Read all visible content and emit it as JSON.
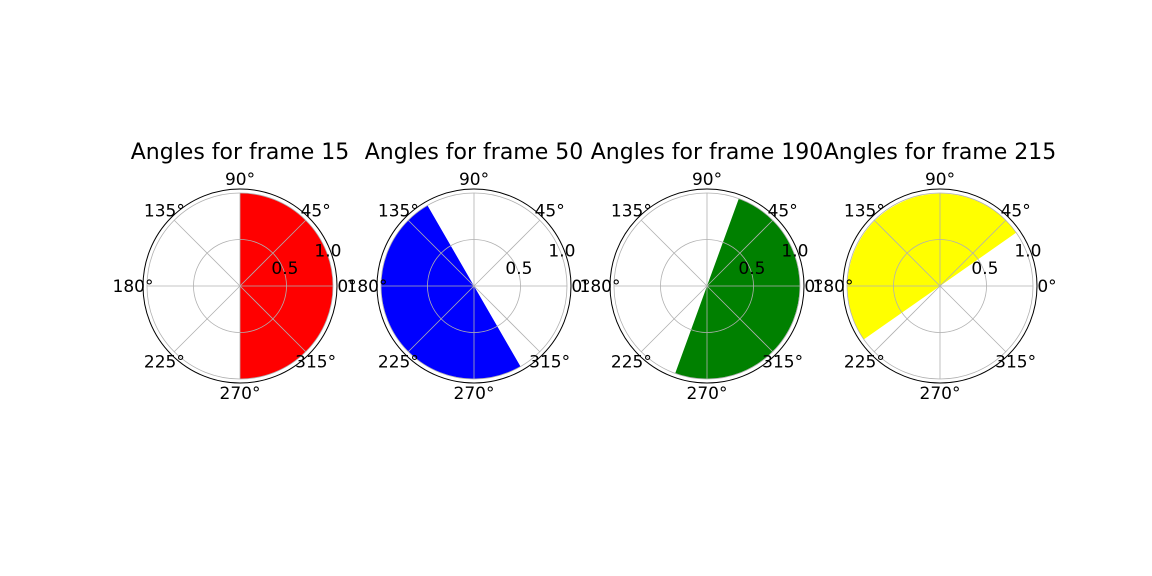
{
  "chart_data": [
    {
      "type": "polar-bar",
      "title": "Angles for frame 15",
      "color": "#ff0000",
      "sector": {
        "theta_start_deg": -90,
        "theta_end_deg": 90,
        "r": 1.0
      },
      "rlim": [
        0,
        1.0
      ],
      "r_ticks": [
        0.5,
        1.0
      ],
      "r_tick_labels": [
        "0.5",
        "1.0"
      ],
      "theta_ticks": [
        0,
        45,
        90,
        135,
        180,
        225,
        270,
        315
      ],
      "theta_tick_labels": [
        "0°",
        "45°",
        "90°",
        "135°",
        "180°",
        "225°",
        "270°",
        "315°"
      ],
      "grid": true
    },
    {
      "type": "polar-bar",
      "title": "Angles for frame 50",
      "color": "#0000ff",
      "sector": {
        "theta_start_deg": 120,
        "theta_end_deg": 300,
        "r": 1.0
      },
      "rlim": [
        0,
        1.0
      ],
      "r_ticks": [
        0.5,
        1.0
      ],
      "r_tick_labels": [
        "0.5",
        "1.0"
      ],
      "theta_ticks": [
        0,
        45,
        90,
        135,
        180,
        225,
        270,
        315
      ],
      "theta_tick_labels": [
        "0°",
        "45°",
        "90°",
        "135°",
        "180°",
        "225°",
        "270°",
        "315°"
      ],
      "grid": true
    },
    {
      "type": "polar-bar",
      "title": "Angles for frame 190",
      "color": "#008000",
      "sector": {
        "theta_start_deg": -110,
        "theta_end_deg": 70,
        "r": 1.0
      },
      "rlim": [
        0,
        1.0
      ],
      "r_ticks": [
        0.5,
        1.0
      ],
      "r_tick_labels": [
        "0.5",
        "1.0"
      ],
      "theta_ticks": [
        0,
        45,
        90,
        135,
        180,
        225,
        270,
        315
      ],
      "theta_tick_labels": [
        "0°",
        "45°",
        "90°",
        "135°",
        "180°",
        "225°",
        "270°",
        "315°"
      ],
      "grid": true
    },
    {
      "type": "polar-bar",
      "title": "Angles for frame 215",
      "color": "#ffff00",
      "sector": {
        "theta_start_deg": 35,
        "theta_end_deg": 215,
        "r": 1.0
      },
      "rlim": [
        0,
        1.0
      ],
      "r_ticks": [
        0.5,
        1.0
      ],
      "r_tick_labels": [
        "0.5",
        "1.0"
      ],
      "theta_ticks": [
        0,
        45,
        90,
        135,
        180,
        225,
        270,
        315
      ],
      "theta_tick_labels": [
        "0°",
        "45°",
        "90°",
        "135°",
        "180°",
        "225°",
        "270°",
        "315°"
      ],
      "grid": true
    }
  ]
}
